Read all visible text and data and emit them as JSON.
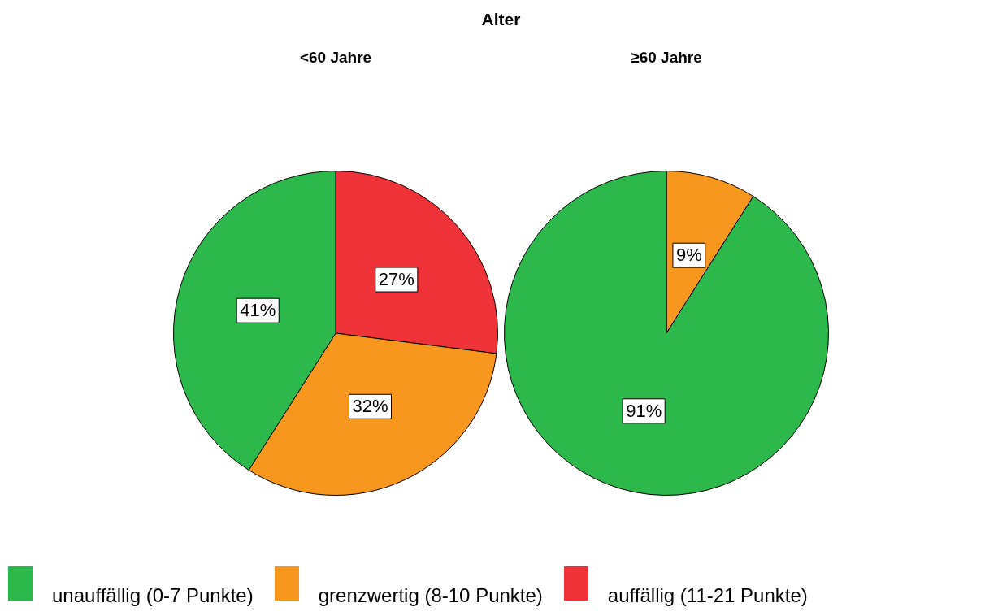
{
  "chart_data": [
    {
      "type": "pie",
      "title": "Alter",
      "subtitle": "<60 Jahre",
      "categories": [
        "unauffällig (0-7 Punkte)",
        "grenzwertig (8-10 Punkte)",
        "auffällig (11-21 Punkte)"
      ],
      "values": [
        41,
        32,
        27
      ],
      "colors": [
        "#2db84b",
        "#f7971e",
        "#ef3338"
      ],
      "value_labels": [
        "41%",
        "32%",
        "27%"
      ],
      "legend": "bottom"
    },
    {
      "type": "pie",
      "subtitle": "≥60 Jahre",
      "categories": [
        null,
        null
      ],
      "values": [
        91,
        9
      ],
      "colors": [
        "#2db84b",
        "#f7971e"
      ],
      "value_labels": [
        "91%",
        "9%"
      ]
    }
  ]
}
